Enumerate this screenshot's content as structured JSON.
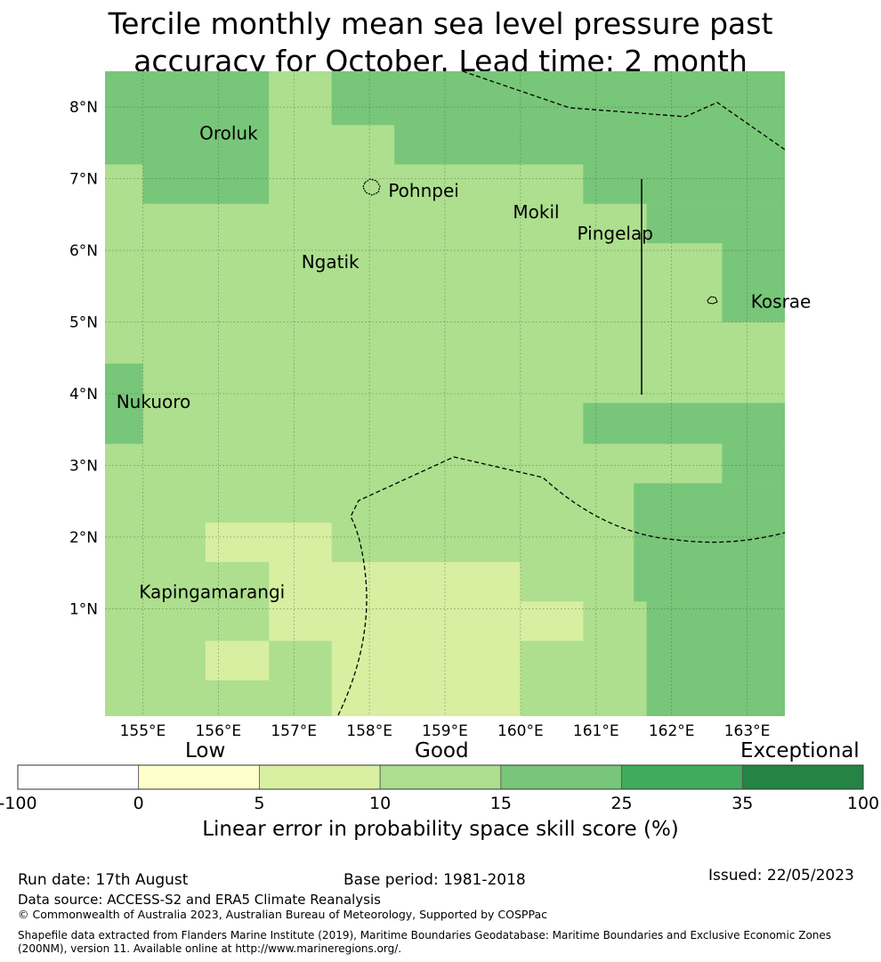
{
  "title": {
    "line1": "Tercile monthly mean sea level pressure past",
    "line2": "accuracy for October. Lead time: 2 month"
  },
  "map": {
    "lon_range": [
      154.5,
      163.5
    ],
    "lat_range": [
      -0.5,
      8.5
    ],
    "lon_ticks": [
      "155°E",
      "156°E",
      "157°E",
      "158°E",
      "159°E",
      "160°E",
      "161°E",
      "162°E",
      "163°E"
    ],
    "lat_ticks": [
      "1°N",
      "2°N",
      "3°N",
      "4°N",
      "5°N",
      "6°N",
      "7°N",
      "8°N"
    ],
    "places": [
      {
        "name": "Oroluk",
        "lon": 155.75,
        "lat": 7.55
      },
      {
        "name": "Pohnpei",
        "lon": 158.25,
        "lat": 6.75
      },
      {
        "name": "Mokil",
        "lon": 159.9,
        "lat": 6.45
      },
      {
        "name": "Pingelap",
        "lon": 160.75,
        "lat": 6.15
      },
      {
        "name": "Ngatik",
        "lon": 157.1,
        "lat": 5.75
      },
      {
        "name": "Kosrae",
        "lon": 163.05,
        "lat": 5.2
      },
      {
        "name": "Nukuoro",
        "lon": 154.65,
        "lat": 3.8
      },
      {
        "name": "Kapingamarangi",
        "lon": 154.95,
        "lat": 1.15
      }
    ],
    "colors": {
      "c1": "#d8eea0",
      "c2": "#addf8e",
      "c3": "#78c679"
    },
    "cells": [
      {
        "lon": [
          154.5,
          155.0
        ],
        "lat": [
          7.2,
          8.5
        ],
        "c": "c3"
      },
      {
        "lon": [
          155.0,
          156.67
        ],
        "lat": [
          6.65,
          8.5
        ],
        "c": "c3"
      },
      {
        "lon": [
          156.67,
          157.5
        ],
        "lat": [
          6.65,
          8.32
        ],
        "c": "c2"
      },
      {
        "lon": [
          157.5,
          158.33
        ],
        "lat": [
          6.65,
          7.75
        ],
        "c": "c2"
      },
      {
        "lon": [
          157.5,
          158.33
        ],
        "lat": [
          7.75,
          8.5
        ],
        "c": "c3"
      },
      {
        "lon": [
          158.33,
          160.83
        ],
        "lat": [
          7.2,
          8.5
        ],
        "c": "c3"
      },
      {
        "lon": [
          160.83,
          163.5
        ],
        "lat": [
          6.65,
          8.5
        ],
        "c": "c3"
      },
      {
        "lon": [
          161.67,
          163.5
        ],
        "lat": [
          6.1,
          6.65
        ],
        "c": "c3"
      },
      {
        "lon": [
          162.67,
          163.5
        ],
        "lat": [
          5.0,
          6.1
        ],
        "c": "c3"
      },
      {
        "lon": [
          154.5,
          155.0
        ],
        "lat": [
          3.3,
          4.42
        ],
        "c": "c3"
      },
      {
        "lon": [
          160.83,
          163.5
        ],
        "lat": [
          3.3,
          3.87
        ],
        "c": "c3"
      },
      {
        "lon": [
          162.67,
          163.5
        ],
        "lat": [
          2.75,
          3.3
        ],
        "c": "c3"
      },
      {
        "lon": [
          161.5,
          163.5
        ],
        "lat": [
          1.1,
          2.75
        ],
        "c": "c3"
      },
      {
        "lon": [
          161.67,
          163.5
        ],
        "lat": [
          -0.5,
          1.1
        ],
        "c": "c3"
      },
      {
        "lon": [
          155.83,
          157.5
        ],
        "lat": [
          1.65,
          2.2
        ],
        "c": "c1"
      },
      {
        "lon": [
          156.67,
          158.33
        ],
        "lat": [
          0.55,
          1.65
        ],
        "c": "c1"
      },
      {
        "lon": [
          158.33,
          160.0
        ],
        "lat": [
          -0.5,
          1.65
        ],
        "c": "c1"
      },
      {
        "lon": [
          157.5,
          158.33
        ],
        "lat": [
          -0.5,
          0.55
        ],
        "c": "c1"
      },
      {
        "lon": [
          160.0,
          160.83
        ],
        "lat": [
          0.55,
          1.1
        ],
        "c": "c1"
      },
      {
        "lon": [
          155.83,
          156.67
        ],
        "lat": [
          0.0,
          0.55
        ],
        "c": "c1"
      }
    ]
  },
  "colorbar": {
    "colors": [
      "#ffffff",
      "#ffffcc",
      "#d9f0a3",
      "#addd8e",
      "#78c679",
      "#41ab5d",
      "#238443"
    ],
    "ticks": [
      "-100",
      "0",
      "5",
      "10",
      "15",
      "25",
      "35",
      "100"
    ],
    "categories": {
      "low": "Low",
      "good": "Good",
      "exceptional": "Exceptional"
    },
    "label": "Linear error in probability space skill score (%)"
  },
  "footer": {
    "run_date": "Run date: 17th August",
    "base_period": "Base period: 1981-2018",
    "issued": "Issued: 22/05/2023",
    "data_source": "Data source: ACCESS-S2 and ERA5 Climate Reanalysis",
    "copyright": "© Commonwealth of Australia 2023, Australian Bureau of Meteorology, Supported by COSPPac",
    "shapefile_line1": "Shapefile data extracted from Flanders Marine Institute (2019), Maritime Boundaries Geodatabase: Maritime Boundaries and Exclusive Economic Zones",
    "shapefile_line2": "(200NM), version 11. Available online at http://www.marineregions.org/."
  }
}
